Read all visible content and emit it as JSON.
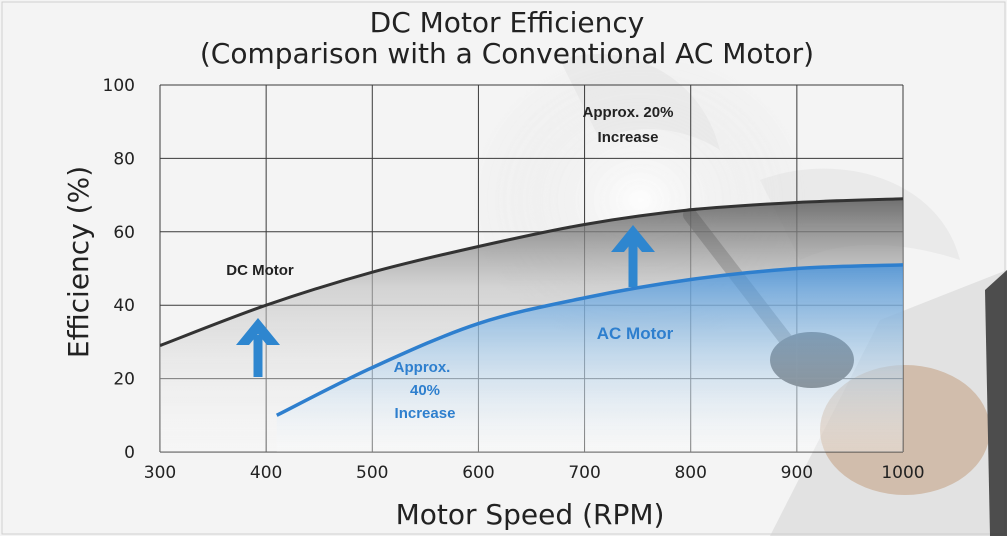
{
  "chart_data": {
    "type": "line",
    "title_line1": "DC Motor Efficiency",
    "title_line2": "(Comparison with a Conventional AC Motor)",
    "xlabel": "Motor Speed (RPM)",
    "ylabel": "Efficiency (%)",
    "xlim": [
      300,
      1000
    ],
    "ylim": [
      0,
      100
    ],
    "xticks": [
      300,
      400,
      500,
      600,
      700,
      800,
      900,
      1000
    ],
    "yticks": [
      0,
      20,
      40,
      60,
      80,
      100
    ],
    "grid": true,
    "series": [
      {
        "name": "DC Motor",
        "color": "#333333",
        "x": [
          300,
          400,
          500,
          600,
          700,
          800,
          900,
          1000
        ],
        "y": [
          29,
          40,
          49,
          56,
          62,
          66,
          68,
          69
        ]
      },
      {
        "name": "AC Motor",
        "color": "#2e7fce",
        "x": [
          410,
          500,
          600,
          700,
          800,
          900,
          1000
        ],
        "y": [
          10,
          23,
          35,
          42,
          47,
          50,
          51
        ]
      }
    ],
    "annotations": {
      "dc_label": "DC Motor",
      "ac_label": "AC Motor",
      "increase_40_line1": "Approx.",
      "increase_40_line2": "40%",
      "increase_40_line3": "Increase",
      "increase_20_line1": "Approx. 20%",
      "increase_20_line2": "Increase"
    },
    "colors": {
      "arrow": "#2e86cf",
      "grid": "#3a3a3a",
      "ac_fill": "#4a9be0"
    }
  }
}
